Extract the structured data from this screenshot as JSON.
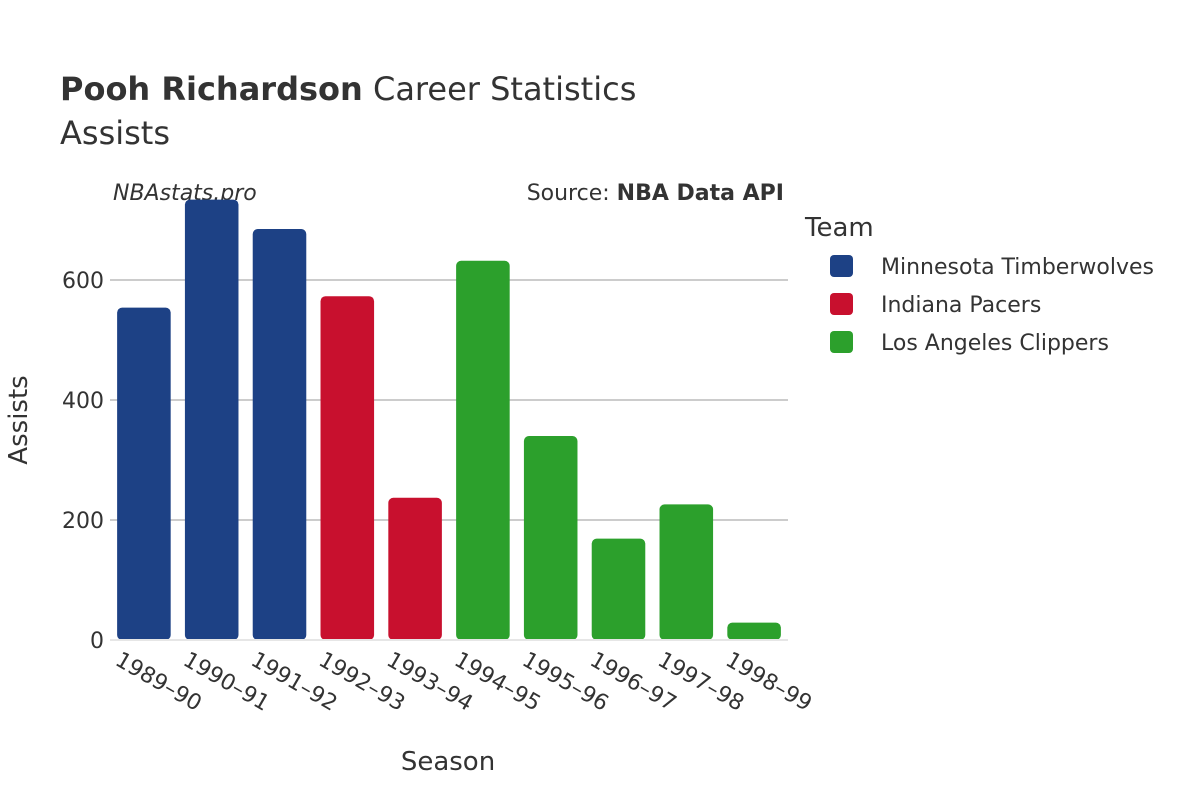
{
  "header": {
    "title_bold": "Pooh Richardson",
    "title_rest": " Career Statistics",
    "subtitle": "Assists",
    "watermark": "NBAstats.pro",
    "source_prefix": "Source: ",
    "source_bold": "NBA Data API"
  },
  "chart_data": {
    "type": "bar",
    "xlabel": "Season",
    "ylabel": "Assists",
    "ylim": [
      0,
      760
    ],
    "yticks": [
      0,
      200,
      400,
      600
    ],
    "grid": true,
    "legend_title": "Team",
    "legend_position": "right",
    "categories": [
      "1989–90",
      "1990–91",
      "1991–92",
      "1992–93",
      "1993–94",
      "1994–95",
      "1995–96",
      "1996–97",
      "1997–98",
      "1998–99"
    ],
    "values": [
      554,
      734,
      685,
      573,
      237,
      632,
      340,
      169,
      226,
      29
    ],
    "teams": [
      "Minnesota Timberwolves",
      "Minnesota Timberwolves",
      "Minnesota Timberwolves",
      "Indiana Pacers",
      "Indiana Pacers",
      "Los Angeles Clippers",
      "Los Angeles Clippers",
      "Los Angeles Clippers",
      "Los Angeles Clippers",
      "Los Angeles Clippers"
    ],
    "legend": [
      {
        "name": "Minnesota Timberwolves",
        "color": "#1d4185"
      },
      {
        "name": "Indiana Pacers",
        "color": "#c8102e"
      },
      {
        "name": "Los Angeles Clippers",
        "color": "#2ca02c"
      }
    ]
  }
}
